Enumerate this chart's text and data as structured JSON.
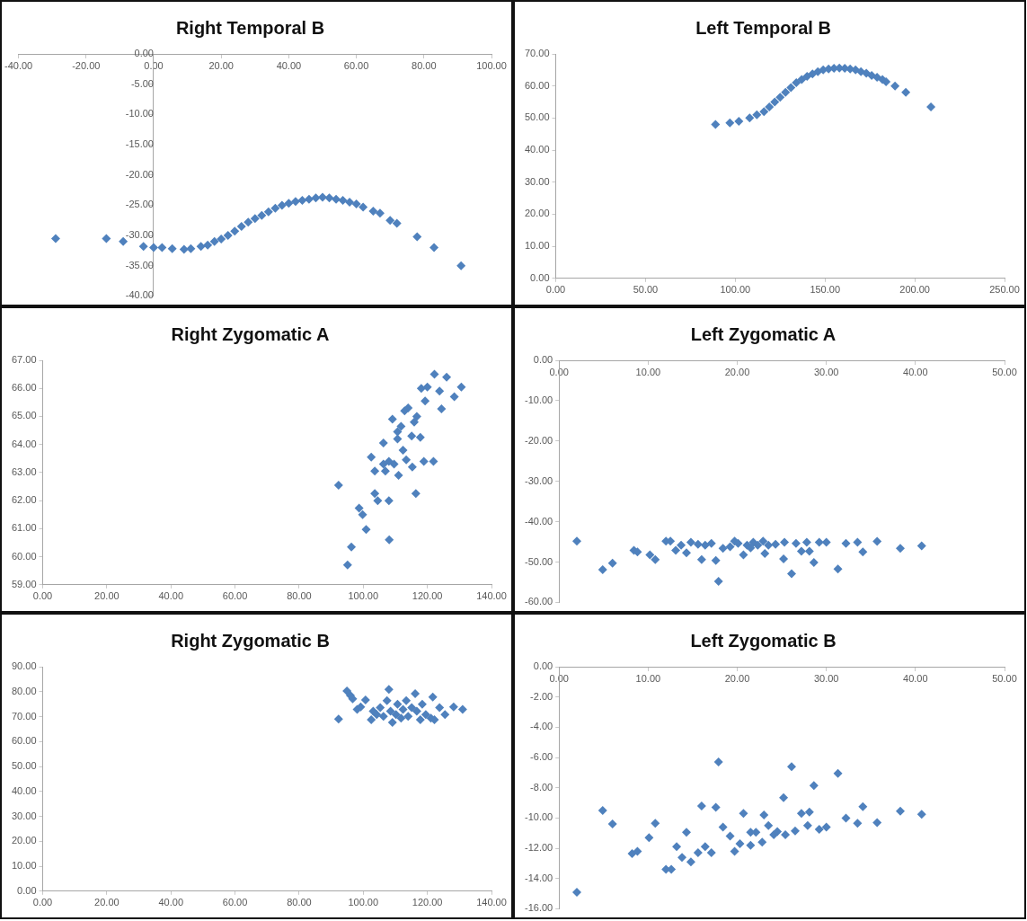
{
  "chart_data": [
    {
      "type": "scatter",
      "title": "Right Temporal B",
      "color": "#4f81bd",
      "marker": "diamond",
      "x": [
        -29,
        -14,
        -9,
        -3,
        0,
        2.5,
        5.5,
        9,
        11,
        14,
        16,
        18,
        20,
        22,
        24,
        26,
        28,
        30,
        32,
        34,
        36,
        38,
        40,
        42,
        44,
        46,
        48,
        50,
        52,
        54,
        56,
        58,
        60,
        62,
        65,
        67,
        70,
        72,
        78,
        83,
        91
      ],
      "values": [
        -30.5,
        -30.5,
        -31,
        -31.8,
        -32,
        -32,
        -32.2,
        -32.3,
        -32.2,
        -31.8,
        -31.6,
        -31,
        -30.6,
        -30,
        -29.3,
        -28.5,
        -27.8,
        -27.2,
        -26.7,
        -26.1,
        -25.5,
        -25,
        -24.7,
        -24.4,
        -24.2,
        -24,
        -23.8,
        -23.7,
        -23.8,
        -24,
        -24.2,
        -24.5,
        -24.8,
        -25.3,
        -26,
        -26.3,
        -27.5,
        -28,
        -30.2,
        -32,
        -35
      ],
      "xlim": [
        -40,
        100
      ],
      "ylim": [
        -40,
        0
      ],
      "xticks": [
        {
          "value": -40,
          "label": "-40.00"
        },
        {
          "value": -20,
          "label": "-20.00"
        },
        {
          "value": 0,
          "label": "0.00"
        },
        {
          "value": 20,
          "label": "20.00"
        },
        {
          "value": 40,
          "label": "40.00"
        },
        {
          "value": 60,
          "label": "60.00"
        },
        {
          "value": 80,
          "label": "80.00"
        },
        {
          "value": 100,
          "label": "100.00"
        }
      ],
      "yticks": [
        {
          "value": -40,
          "label": "-40.00"
        },
        {
          "value": -35,
          "label": "-35.00"
        },
        {
          "value": -30,
          "label": "-30.00"
        },
        {
          "value": -25,
          "label": "-25.00"
        },
        {
          "value": -20,
          "label": "-20.00"
        },
        {
          "value": -15,
          "label": "-15.00"
        },
        {
          "value": -10,
          "label": "-10.00"
        },
        {
          "value": -5,
          "label": "-5.00"
        },
        {
          "value": 0,
          "label": "0.00"
        }
      ]
    },
    {
      "type": "scatter",
      "title": "Left Temporal B",
      "color": "#4f81bd",
      "marker": "diamond",
      "x": [
        89,
        97,
        102,
        108,
        112,
        116,
        119,
        122,
        125,
        128,
        131,
        134,
        137,
        140,
        143,
        146,
        149,
        152,
        155,
        158,
        161,
        164,
        167,
        170,
        173,
        176,
        179,
        182,
        184,
        189,
        195,
        209
      ],
      "values": [
        48,
        48.5,
        49,
        50,
        51,
        52,
        53.5,
        55,
        56.5,
        58,
        59.5,
        61,
        62,
        63,
        63.8,
        64.5,
        65,
        65.3,
        65.5,
        65.6,
        65.5,
        65.3,
        65,
        64.5,
        64,
        63.3,
        62.7,
        62,
        61.3,
        60,
        58,
        53.5
      ],
      "xlim": [
        0,
        250
      ],
      "ylim": [
        0,
        70
      ],
      "xticks": [
        {
          "value": 0,
          "label": "0.00"
        },
        {
          "value": 50,
          "label": "50.00"
        },
        {
          "value": 100,
          "label": "100.00"
        },
        {
          "value": 150,
          "label": "150.00"
        },
        {
          "value": 200,
          "label": "200.00"
        },
        {
          "value": 250,
          "label": "250.00"
        }
      ],
      "yticks": [
        {
          "value": 0,
          "label": "0.00"
        },
        {
          "value": 10,
          "label": "10.00"
        },
        {
          "value": 20,
          "label": "20.00"
        },
        {
          "value": 30,
          "label": "30.00"
        },
        {
          "value": 40,
          "label": "40.00"
        },
        {
          "value": 50,
          "label": "50.00"
        },
        {
          "value": 60,
          "label": "60.00"
        },
        {
          "value": 70,
          "label": "70.00"
        }
      ]
    },
    {
      "type": "scatter",
      "title": "Right Zygomatic A",
      "color": "#4f81bd",
      "marker": "diamond",
      "x": [
        92.3,
        95.1,
        96.3,
        98.7,
        99.8,
        100.9,
        102.5,
        103.6,
        103.6,
        104.5,
        106.3,
        106.3,
        106.9,
        108,
        108,
        108.1,
        109.1,
        109.6,
        110.7,
        110.7,
        111,
        111.8,
        112.4,
        112.9,
        113.4,
        114,
        115.1,
        115.3,
        115.9,
        116.4,
        116.7,
        117.8,
        118.1,
        119.3,
        118.9,
        120,
        121.9,
        122.2,
        123.8,
        124.4,
        126,
        128.4,
        130.6
      ],
      "values": [
        62.55,
        59.71,
        60.35,
        61.73,
        61.5,
        60.97,
        63.55,
        63.05,
        62.25,
        62,
        64.05,
        63.3,
        63.05,
        63.4,
        62,
        60.6,
        64.9,
        63.3,
        64.45,
        64.2,
        62.9,
        64.65,
        63.8,
        65.2,
        63.45,
        65.3,
        64.3,
        63.2,
        64.8,
        62.25,
        65,
        64.25,
        66,
        65.55,
        63.4,
        66.05,
        63.4,
        66.5,
        65.9,
        65.27,
        66.4,
        65.7,
        66.05
      ],
      "xlim": [
        0,
        140
      ],
      "ylim": [
        59,
        67
      ],
      "xticks": [
        {
          "value": 0,
          "label": "0.00"
        },
        {
          "value": 20,
          "label": "20.00"
        },
        {
          "value": 40,
          "label": "40.00"
        },
        {
          "value": 60,
          "label": "60.00"
        },
        {
          "value": 80,
          "label": "80.00"
        },
        {
          "value": 100,
          "label": "100.00"
        },
        {
          "value": 120,
          "label": "120.00"
        },
        {
          "value": 140,
          "label": "140.00"
        }
      ],
      "yticks": [
        {
          "value": 59,
          "label": "59.00"
        },
        {
          "value": 60,
          "label": "60.00"
        },
        {
          "value": 61,
          "label": "61.00"
        },
        {
          "value": 62,
          "label": "62.00"
        },
        {
          "value": 63,
          "label": "63.00"
        },
        {
          "value": 64,
          "label": "64.00"
        },
        {
          "value": 65,
          "label": "65.00"
        },
        {
          "value": 66,
          "label": "66.00"
        },
        {
          "value": 67,
          "label": "67.00"
        }
      ]
    },
    {
      "type": "scatter",
      "title": "Left Zygomatic A",
      "color": "#4f81bd",
      "marker": "diamond",
      "x": [
        2,
        4.9,
        6,
        8.4,
        8.8,
        10.2,
        10.8,
        12,
        12.5,
        13.1,
        13.7,
        14.3,
        14.8,
        15.6,
        16,
        16.4,
        17.1,
        17.6,
        17.9,
        18.4,
        19.2,
        19.7,
        20.1,
        20.7,
        21.1,
        21.5,
        21.8,
        22.3,
        22.9,
        23.1,
        23.5,
        24.3,
        25.3,
        25.2,
        26.1,
        26.6,
        27.2,
        27.8,
        28.1,
        28.6,
        29.2,
        30,
        31.3,
        32.2,
        33.5,
        34.1,
        35.7,
        38.3,
        40.7
      ],
      "values": [
        -44.8,
        -51.9,
        -50.3,
        -47.1,
        -47.5,
        -48.2,
        -49.4,
        -44.8,
        -44.8,
        -47.1,
        -45.8,
        -47.7,
        -45.1,
        -45.6,
        -49.4,
        -45.8,
        -45.4,
        -49.6,
        -54.8,
        -46.6,
        -46.2,
        -44.8,
        -45.4,
        -48.2,
        -45.8,
        -46.5,
        -45.1,
        -45.8,
        -44.8,
        -47.9,
        -45.8,
        -45.6,
        -45.1,
        -49.2,
        -52.9,
        -45.4,
        -47.3,
        -45.1,
        -47.3,
        -50.1,
        -45.1,
        -45.1,
        -51.7,
        -45.4,
        -45.1,
        -47.5,
        -44.9,
        -46.6,
        -46
      ],
      "xlim": [
        0,
        50
      ],
      "ylim": [
        -60,
        0
      ],
      "xticks": [
        {
          "value": 0,
          "label": "0.00"
        },
        {
          "value": 10,
          "label": "10.00"
        },
        {
          "value": 20,
          "label": "20.00"
        },
        {
          "value": 30,
          "label": "30.00"
        },
        {
          "value": 40,
          "label": "40.00"
        },
        {
          "value": 50,
          "label": "50.00"
        }
      ],
      "yticks": [
        {
          "value": -60,
          "label": "-60.00"
        },
        {
          "value": -50,
          "label": "-50.00"
        },
        {
          "value": -40,
          "label": "-40.00"
        },
        {
          "value": -30,
          "label": "-30.00"
        },
        {
          "value": -20,
          "label": "-20.00"
        },
        {
          "value": -10,
          "label": "-10.00"
        },
        {
          "value": 0,
          "label": "0.00"
        }
      ]
    },
    {
      "type": "scatter",
      "title": "Right Zygomatic B",
      "color": "#4f81bd",
      "marker": "diamond",
      "x": [
        92.3,
        94.9,
        96,
        96.7,
        98.1,
        99.2,
        100.7,
        102.5,
        103.1,
        104.2,
        105.3,
        106.3,
        107.4,
        108,
        108.5,
        109.1,
        110.2,
        110.7,
        111.8,
        112.4,
        113.4,
        114,
        115.1,
        116.2,
        116.7,
        117.8,
        118.4,
        119.5,
        121.1,
        121.7,
        122.2,
        123.8,
        125.5,
        128.2,
        131
      ],
      "values": [
        69,
        80.3,
        78.5,
        77.1,
        72.9,
        73.9,
        76.7,
        68.7,
        72.2,
        70.8,
        73.6,
        70.1,
        76.4,
        80.9,
        72.2,
        67.7,
        70.8,
        75,
        69.4,
        72.9,
        76.4,
        70.1,
        73.6,
        79.2,
        72.2,
        68.7,
        75,
        70.8,
        69.4,
        77.8,
        68.7,
        73.6,
        70.8,
        73.9,
        72.9
      ],
      "xlim": [
        0,
        140
      ],
      "ylim": [
        0,
        90
      ],
      "xticks": [
        {
          "value": 0,
          "label": "0.00"
        },
        {
          "value": 20,
          "label": "20.00"
        },
        {
          "value": 40,
          "label": "40.00"
        },
        {
          "value": 60,
          "label": "60.00"
        },
        {
          "value": 80,
          "label": "80.00"
        },
        {
          "value": 100,
          "label": "100.00"
        },
        {
          "value": 120,
          "label": "120.00"
        },
        {
          "value": 140,
          "label": "140.00"
        }
      ],
      "yticks": [
        {
          "value": 0,
          "label": "0.00"
        },
        {
          "value": 10,
          "label": "10.00"
        },
        {
          "value": 20,
          "label": "20.00"
        },
        {
          "value": 30,
          "label": "30.00"
        },
        {
          "value": 40,
          "label": "40.00"
        },
        {
          "value": 50,
          "label": "50.00"
        },
        {
          "value": 60,
          "label": "60.00"
        },
        {
          "value": 70,
          "label": "70.00"
        },
        {
          "value": 80,
          "label": "80.00"
        },
        {
          "value": 90,
          "label": "90.00"
        }
      ]
    },
    {
      "type": "scatter",
      "title": "Left Zygomatic B",
      "color": "#4f81bd",
      "marker": "diamond",
      "x": [
        2,
        4.9,
        6,
        8.2,
        8.8,
        10.1,
        10.8,
        12,
        12.6,
        13.2,
        13.8,
        14.3,
        14.8,
        15.6,
        16,
        16.4,
        17.1,
        17.6,
        17.9,
        18.4,
        19.2,
        19.7,
        20.3,
        20.7,
        21.5,
        21.5,
        22.1,
        22.8,
        23,
        23.5,
        24.1,
        24.5,
        25.2,
        25.4,
        26.1,
        26.5,
        27.2,
        27.9,
        28.1,
        28.6,
        29.2,
        30,
        31.3,
        32.2,
        33.5,
        34.1,
        35.7,
        38.3,
        40.7
      ],
      "values": [
        -14.9,
        -9.5,
        -10.4,
        -12.35,
        -12.2,
        -11.3,
        -10.35,
        -13.4,
        -13.4,
        -11.9,
        -12.6,
        -10.95,
        -12.9,
        -12.3,
        -9.2,
        -11.9,
        -12.3,
        -9.3,
        -6.3,
        -10.6,
        -11.2,
        -12.2,
        -11.7,
        -9.7,
        -11.8,
        -10.95,
        -10.95,
        -11.6,
        -9.8,
        -10.5,
        -11.1,
        -10.9,
        -8.65,
        -11.1,
        -6.6,
        -10.85,
        -9.7,
        -10.5,
        -9.6,
        -7.85,
        -10.75,
        -10.6,
        -7.05,
        -10,
        -10.35,
        -9.25,
        -10.3,
        -9.55,
        -9.75
      ],
      "xlim": [
        0,
        50
      ],
      "ylim": [
        -16,
        0
      ],
      "xticks": [
        {
          "value": 0,
          "label": "0.00"
        },
        {
          "value": 10,
          "label": "10.00"
        },
        {
          "value": 20,
          "label": "20.00"
        },
        {
          "value": 30,
          "label": "30.00"
        },
        {
          "value": 40,
          "label": "40.00"
        },
        {
          "value": 50,
          "label": "50.00"
        }
      ],
      "yticks": [
        {
          "value": -16,
          "label": "-16.00"
        },
        {
          "value": -14,
          "label": "-14.00"
        },
        {
          "value": -12,
          "label": "-12.00"
        },
        {
          "value": -10,
          "label": "-10.00"
        },
        {
          "value": -8,
          "label": "-8.00"
        },
        {
          "value": -6,
          "label": "-6.00"
        },
        {
          "value": -4,
          "label": "-4.00"
        },
        {
          "value": -2,
          "label": "-2.00"
        },
        {
          "value": 0,
          "label": "0.00"
        }
      ]
    }
  ]
}
